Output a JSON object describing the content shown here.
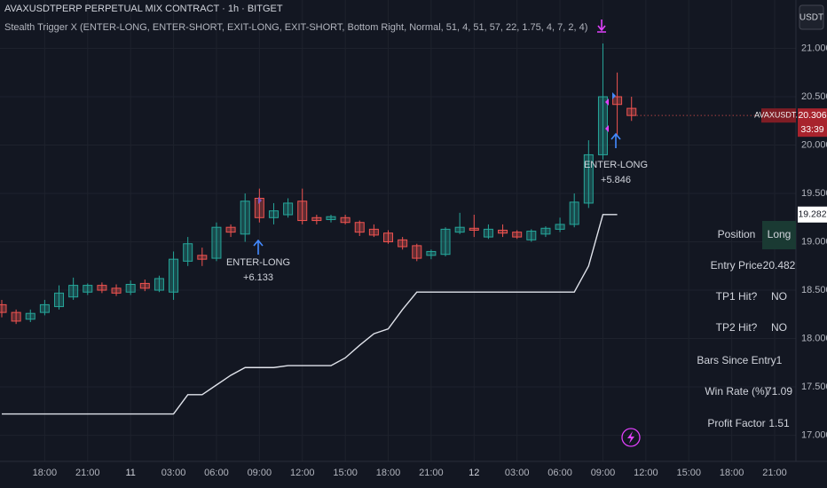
{
  "chart_data": {
    "type": "candlestick",
    "title": "AVAXUSDTPERP PERPETUAL MIX CONTRACT · 1h · BITGET",
    "subtitle": "Stealth Trigger X (ENTER-LONG, ENTER-SHORT, EXIT-LONG, EXIT-SHORT, Bottom Right, Normal, 51, 4, 51, 57, 22, 1.75, 4, 7, 2, 4)",
    "currency": "USDT",
    "symbol_tag": "AVAXUSDT.P",
    "countdown": "33:39",
    "categories": [
      null,
      null,
      null,
      "18:00",
      null,
      null,
      "21:00",
      null,
      null,
      "11",
      null,
      null,
      "03:00",
      null,
      null,
      "06:00",
      null,
      null,
      "09:00",
      null,
      null,
      "12:00",
      null,
      null,
      "15:00",
      null,
      null,
      "18:00",
      null,
      null,
      "21:00",
      null,
      null,
      "12",
      null,
      null,
      "03:00",
      null,
      null,
      "06:00",
      null,
      null,
      "09:00",
      null,
      null,
      "12:00",
      null,
      null,
      "15:00",
      null,
      null,
      "18:00",
      null,
      null,
      "21:00"
    ],
    "open": [
      18.35,
      18.27,
      18.2,
      18.27,
      18.33,
      18.43,
      18.48,
      18.55,
      18.52,
      18.48,
      18.57,
      18.5,
      18.48,
      18.8,
      18.86,
      18.83,
      19.15,
      19.08,
      19.45,
      19.25,
      19.28,
      19.42,
      19.25,
      19.23,
      19.25,
      19.2,
      19.13,
      19.09,
      19.02,
      18.96,
      18.86,
      18.87,
      19.1,
      19.14,
      19.05,
      19.12,
      19.1,
      19.02,
      19.08,
      19.13,
      19.18,
      19.4,
      19.9,
      20.5,
      20.38,
      null,
      null,
      null,
      null,
      null,
      null,
      null,
      null,
      null,
      null
    ],
    "high": [
      18.4,
      18.3,
      18.3,
      18.4,
      18.55,
      18.63,
      18.57,
      18.58,
      18.56,
      18.6,
      18.61,
      18.65,
      18.9,
      19.05,
      18.94,
      19.2,
      19.18,
      19.5,
      19.55,
      19.4,
      19.45,
      19.55,
      19.28,
      19.28,
      19.28,
      19.22,
      19.18,
      19.12,
      19.05,
      18.98,
      18.92,
      19.15,
      19.3,
      19.28,
      19.18,
      19.18,
      19.12,
      19.13,
      19.16,
      19.25,
      19.5,
      20.05,
      21.05,
      20.75,
      20.5,
      null,
      null,
      null,
      null,
      null,
      null,
      null,
      null,
      null,
      null
    ],
    "low": [
      18.22,
      18.15,
      18.17,
      18.24,
      18.3,
      18.4,
      18.45,
      18.47,
      18.44,
      18.45,
      18.49,
      18.48,
      18.4,
      18.75,
      18.75,
      18.8,
      19.05,
      19.0,
      19.2,
      19.18,
      19.25,
      19.18,
      19.18,
      19.2,
      19.18,
      19.06,
      19.05,
      18.98,
      18.92,
      18.8,
      18.82,
      18.85,
      19.08,
      19.05,
      19.03,
      19.05,
      19.03,
      19.0,
      19.05,
      19.1,
      19.15,
      19.35,
      19.85,
      20.1,
      20.25,
      null,
      null,
      null,
      null,
      null,
      null,
      null,
      null,
      null,
      null
    ],
    "close": [
      18.27,
      18.18,
      18.26,
      18.35,
      18.47,
      18.55,
      18.55,
      18.5,
      18.47,
      18.56,
      18.52,
      18.62,
      18.82,
      18.98,
      18.82,
      19.15,
      19.1,
      19.42,
      19.25,
      19.32,
      19.4,
      19.22,
      19.22,
      19.26,
      19.2,
      19.1,
      19.07,
      19.0,
      18.95,
      18.83,
      18.9,
      19.13,
      19.15,
      19.12,
      19.13,
      19.09,
      19.05,
      19.11,
      19.14,
      19.18,
      19.41,
      19.9,
      20.5,
      20.42,
      20.306,
      null,
      null,
      null,
      null,
      null,
      null,
      null,
      null,
      null,
      null
    ],
    "up_color": "#26a69a",
    "down_color": "#ef5350",
    "line": {
      "color": "#e0e3eb",
      "values": [
        17.22,
        17.22,
        17.22,
        17.22,
        17.22,
        17.22,
        17.22,
        17.22,
        17.22,
        17.22,
        17.22,
        17.22,
        17.22,
        17.42,
        17.42,
        17.52,
        17.62,
        17.7,
        17.7,
        17.7,
        17.72,
        17.72,
        17.72,
        17.72,
        17.8,
        17.93,
        18.05,
        18.1,
        18.3,
        18.48,
        18.48,
        18.48,
        18.48,
        18.48,
        18.48,
        18.48,
        18.48,
        18.48,
        18.48,
        18.48,
        18.48,
        18.75,
        19.282,
        19.282,
        null,
        null,
        null,
        null,
        null,
        null,
        null,
        null,
        null,
        null,
        null
      ]
    },
    "signals": [
      {
        "text": "ENTER-LONG",
        "profit": "+6.133"
      },
      {
        "text": "ENTER-LONG",
        "profit": "+5.846"
      }
    ],
    "ylim": [
      16.73,
      21.5
    ],
    "yticks": [
      {
        "value": 17,
        "label": "17.000"
      },
      {
        "value": 17.5,
        "label": "17.500"
      },
      {
        "value": 18,
        "label": "18.000"
      },
      {
        "value": 18.5,
        "label": "18.500"
      },
      {
        "value": 19,
        "label": "19.000"
      },
      {
        "value": 19.5,
        "label": "19.500"
      },
      {
        "value": 20,
        "label": "20.000"
      },
      {
        "value": 20.5,
        "label": "20.500"
      },
      {
        "value": 21,
        "label": "21.000"
      }
    ],
    "grid": true
  },
  "table": {
    "rows": [
      [
        "Position",
        "Long"
      ],
      [
        "Entry Price",
        20.482
      ],
      [
        "TP1 Hit?",
        "NO"
      ],
      [
        "TP2 Hit?",
        "NO"
      ],
      [
        "Bars Since Entry",
        1
      ],
      [
        "Win Rate (%)",
        71.09
      ],
      [
        "Profit Factor",
        1.51
      ]
    ]
  }
}
